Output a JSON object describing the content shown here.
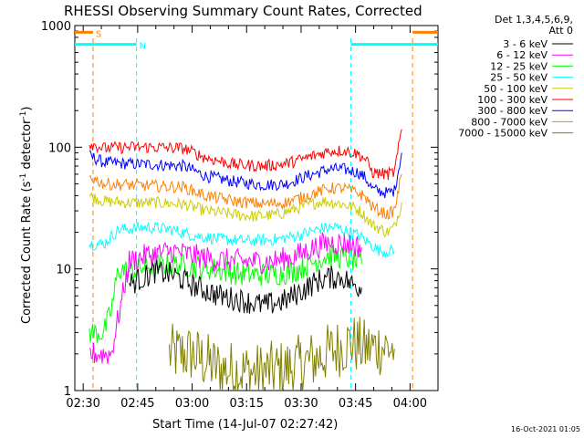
{
  "chart_data": {
    "type": "line",
    "title": "RHESSI Observing Summary Count Rates, Corrected",
    "xlabel": "Start Time (14-Jul-07 02:27:42)",
    "ylabel": "Corrected Count Rate (s",
    "ylabel_sup": "-1",
    "ylabel_tail": " detector",
    "ylabel_sup2": "-1",
    "ylabel_end": ")",
    "y_scale": "log",
    "ylim": [
      1,
      1000
    ],
    "xlim_minutes": [
      0,
      100
    ],
    "x_ticks": [
      {
        "label": "02:30",
        "min": 2.3
      },
      {
        "label": "02:45",
        "min": 17.3
      },
      {
        "label": "03:00",
        "min": 32.3
      },
      {
        "label": "03:15",
        "min": 47.3
      },
      {
        "label": "03:30",
        "min": 62.3
      },
      {
        "label": "03:45",
        "min": 77.3
      },
      {
        "label": "04:00",
        "min": 92.3
      }
    ],
    "y_ticks": [
      {
        "label": "1",
        "v": 1
      },
      {
        "label": "10",
        "v": 10
      },
      {
        "label": "100",
        "v": 100
      },
      {
        "label": "1000",
        "v": 1000
      }
    ],
    "legend_header": [
      "Det 1,3,4,5,6,9,",
      "Att 0"
    ],
    "legend_placement": "right",
    "series": [
      {
        "name": "3 - 6 keV",
        "color": "#000000",
        "points": [
          [
            15,
            7.5
          ],
          [
            19,
            8.5
          ],
          [
            22,
            9.5
          ],
          [
            27,
            9
          ],
          [
            30,
            8
          ],
          [
            34,
            7
          ],
          [
            40,
            6
          ],
          [
            46,
            5.5
          ],
          [
            52,
            5
          ],
          [
            58,
            5.5
          ],
          [
            62,
            6.5
          ],
          [
            67,
            8
          ],
          [
            70,
            8.5
          ],
          [
            74,
            8.5
          ],
          [
            76,
            7.5
          ],
          [
            79,
            7
          ]
        ]
      },
      {
        "name": "6 - 12 keV",
        "color": "#ff00ff",
        "points": [
          [
            4,
            2
          ],
          [
            6,
            2
          ],
          [
            10,
            2
          ],
          [
            15,
            11.5
          ],
          [
            20,
            13
          ],
          [
            27,
            14
          ],
          [
            32,
            13
          ],
          [
            38,
            12
          ],
          [
            46,
            11.5
          ],
          [
            54,
            11.5
          ],
          [
            60,
            12.5
          ],
          [
            66,
            15
          ],
          [
            70,
            16.5
          ],
          [
            76,
            16
          ],
          [
            79,
            15
          ]
        ]
      },
      {
        "name": "12 - 25 keV",
        "color": "#00ff00",
        "points": [
          [
            4,
            3
          ],
          [
            8,
            3
          ],
          [
            10,
            4.5
          ],
          [
            12,
            10
          ],
          [
            15,
            9.5
          ],
          [
            20,
            10.5
          ],
          [
            27,
            11
          ],
          [
            32,
            10.5
          ],
          [
            38,
            10
          ],
          [
            46,
            9
          ],
          [
            54,
            9
          ],
          [
            60,
            9.5
          ],
          [
            66,
            11.5
          ],
          [
            70,
            13
          ],
          [
            76,
            12
          ],
          [
            79,
            11
          ]
        ]
      },
      {
        "name": "25 - 50 keV",
        "color": "#00ffff",
        "points": [
          [
            4,
            16
          ],
          [
            8,
            16
          ],
          [
            12,
            21
          ],
          [
            20,
            22
          ],
          [
            27,
            21
          ],
          [
            32,
            19
          ],
          [
            40,
            17.5
          ],
          [
            48,
            17
          ],
          [
            56,
            17.5
          ],
          [
            62,
            19
          ],
          [
            68,
            21.5
          ],
          [
            72,
            22
          ],
          [
            78,
            19
          ],
          [
            84,
            14
          ],
          [
            88,
            14
          ]
        ]
      },
      {
        "name": "50 - 100 keV",
        "color": "#cccc00",
        "points": [
          [
            4,
            40
          ],
          [
            8,
            36
          ],
          [
            15,
            35
          ],
          [
            22,
            35
          ],
          [
            30,
            34
          ],
          [
            36,
            30
          ],
          [
            44,
            28
          ],
          [
            50,
            27
          ],
          [
            56,
            28
          ],
          [
            62,
            32
          ],
          [
            68,
            36
          ],
          [
            72,
            35
          ],
          [
            77,
            32
          ],
          [
            79,
            29
          ],
          [
            82,
            23
          ],
          [
            86,
            20
          ],
          [
            88,
            22
          ],
          [
            90,
            35
          ]
        ]
      },
      {
        "name": "100 - 300 keV",
        "color": "#ff0000",
        "points": [
          [
            4,
            108
          ],
          [
            8,
            98
          ],
          [
            15,
            100
          ],
          [
            22,
            100
          ],
          [
            30,
            98
          ],
          [
            36,
            82
          ],
          [
            44,
            72
          ],
          [
            52,
            70
          ],
          [
            58,
            73
          ],
          [
            64,
            82
          ],
          [
            70,
            93
          ],
          [
            74,
            94
          ],
          [
            78,
            88
          ],
          [
            80,
            80
          ],
          [
            82,
            62
          ],
          [
            86,
            60
          ],
          [
            88,
            62
          ],
          [
            90,
            140
          ]
        ]
      },
      {
        "name": "300 - 800 keV",
        "color": "#0000ff",
        "points": [
          [
            4,
            85
          ],
          [
            8,
            75
          ],
          [
            15,
            73
          ],
          [
            22,
            72
          ],
          [
            30,
            70
          ],
          [
            36,
            58
          ],
          [
            44,
            52
          ],
          [
            52,
            49
          ],
          [
            58,
            50
          ],
          [
            64,
            58
          ],
          [
            70,
            66
          ],
          [
            74,
            66
          ],
          [
            78,
            62
          ],
          [
            80,
            56
          ],
          [
            82,
            45
          ],
          [
            86,
            42
          ],
          [
            88,
            44
          ],
          [
            90,
            90
          ]
        ]
      },
      {
        "name": "800 - 7000 keV",
        "color": "#ff8000",
        "points": [
          [
            4,
            58
          ],
          [
            8,
            50
          ],
          [
            15,
            49
          ],
          [
            22,
            48
          ],
          [
            30,
            47
          ],
          [
            36,
            40
          ],
          [
            44,
            36
          ],
          [
            52,
            34
          ],
          [
            58,
            35
          ],
          [
            64,
            40
          ],
          [
            70,
            46
          ],
          [
            74,
            46
          ],
          [
            78,
            42
          ],
          [
            80,
            39
          ],
          [
            82,
            32
          ],
          [
            86,
            28
          ],
          [
            88,
            30
          ],
          [
            90,
            60
          ]
        ]
      },
      {
        "name": "7000 - 15000 keV",
        "color": "#808000",
        "points": [
          [
            26,
            2
          ],
          [
            32,
            2
          ],
          [
            40,
            1.5
          ],
          [
            50,
            1.4
          ],
          [
            58,
            1.5
          ],
          [
            66,
            1.8
          ],
          [
            72,
            2.2
          ],
          [
            76,
            2.5
          ],
          [
            80,
            2.2
          ],
          [
            84,
            2.3
          ],
          [
            88,
            2.2
          ]
        ]
      }
    ],
    "state_bars": [
      {
        "label": "S",
        "color": "#ff8000",
        "level": 880,
        "segments": [
          [
            0,
            5
          ],
          [
            93,
            100
          ]
        ]
      },
      {
        "label": "N",
        "color": "#00ffff",
        "level": 700,
        "segments": [
          [
            0,
            17
          ],
          [
            76,
            100
          ]
        ]
      }
    ],
    "footer": "16-Oct-2021 01:05"
  }
}
